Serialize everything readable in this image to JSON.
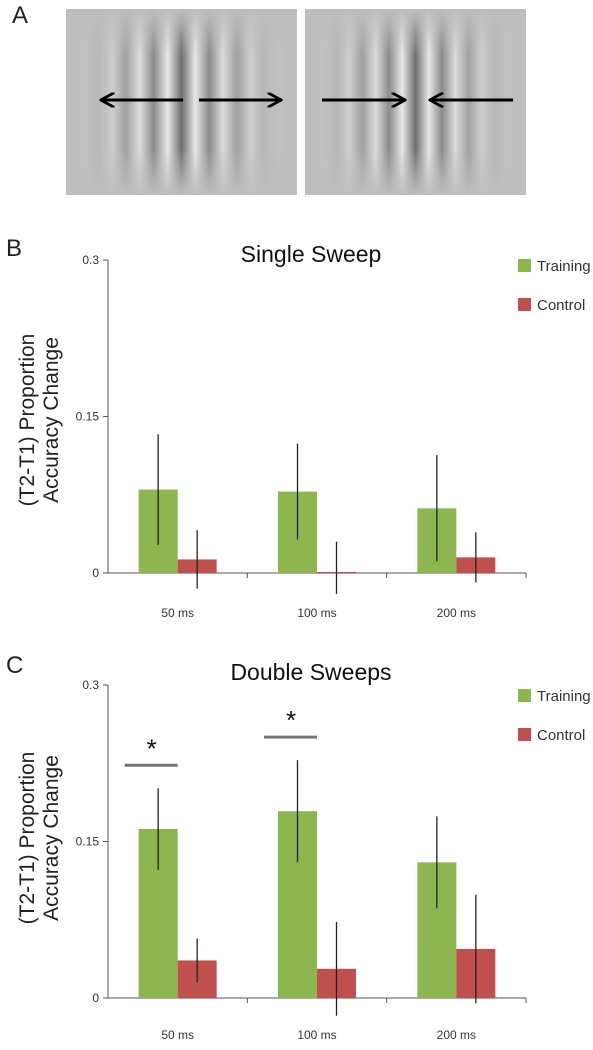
{
  "panels": {
    "a": "A",
    "b": "B",
    "c": "C"
  },
  "stimuli": {
    "left_image": "gabor-arrows-outward",
    "right_image": "gabor-arrows-inward"
  },
  "colors": {
    "training": "#8db550",
    "control": "#c0504d",
    "axis": "#555555",
    "error_bar": "#222222",
    "significance_line": "#777777"
  },
  "chart_data": [
    {
      "type": "bar",
      "title": "Single Sweep",
      "ylabel_line1": "(T2-T1) Proportion",
      "ylabel_line2": "Accuracy Change",
      "categories": [
        "50 ms",
        "100 ms",
        "200 ms"
      ],
      "ylim": [
        0,
        0.3
      ],
      "yticks": [
        "0",
        "0.15",
        "0.3"
      ],
      "ytick_values": [
        0,
        0.15,
        0.3
      ],
      "legend_position": "top-right",
      "series": [
        {
          "name": "Training",
          "values": [
            0.08,
            0.078,
            0.062
          ],
          "error": [
            0.053,
            0.046,
            0.051
          ]
        },
        {
          "name": "Control",
          "values": [
            0.013,
            0.001,
            0.015
          ],
          "error": [
            0.028,
            0.029,
            0.024
          ]
        }
      ],
      "significance": []
    },
    {
      "type": "bar",
      "title": "Double Sweeps",
      "ylabel_line1": "(T2-T1) Proportion",
      "ylabel_line2": "Accuracy Change",
      "categories": [
        "50 ms",
        "100 ms",
        "200 ms"
      ],
      "ylim": [
        0,
        0.3
      ],
      "yticks": [
        "0",
        "0.15",
        "0.3"
      ],
      "ytick_values": [
        0,
        0.15,
        0.3
      ],
      "legend_position": "top-right",
      "series": [
        {
          "name": "Training",
          "values": [
            0.162,
            0.179,
            0.13
          ],
          "error": [
            0.039,
            0.049,
            0.044
          ]
        },
        {
          "name": "Control",
          "values": [
            0.036,
            0.028,
            0.047
          ],
          "error": [
            0.021,
            0.045,
            0.052
          ]
        }
      ],
      "significance": [
        {
          "category_index": 0,
          "label": "*"
        },
        {
          "category_index": 1,
          "label": "*"
        }
      ]
    }
  ]
}
